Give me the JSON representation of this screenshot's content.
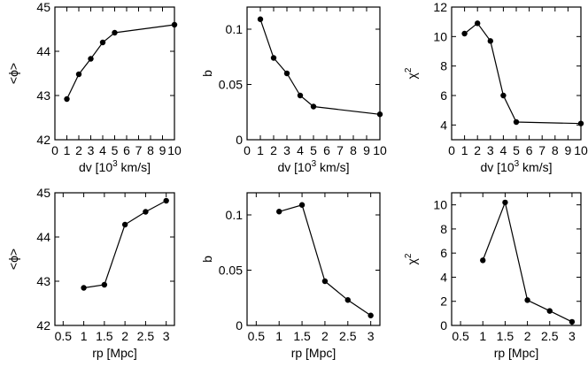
{
  "chart_data": [
    {
      "type": "line",
      "xlabel": "dv [10",
      "xlabel_sup": "3",
      "xlabel_tail": " km/s]",
      "ylabel": "<ϕ>",
      "xlim": [
        0,
        10
      ],
      "ylim": [
        42,
        45
      ],
      "xticks": [
        0,
        1,
        2,
        3,
        4,
        5,
        6,
        7,
        8,
        9,
        10
      ],
      "xtick_labels": [
        "0",
        "1",
        "2",
        "3",
        "4",
        "5",
        "6",
        "7",
        "8",
        "9",
        "10"
      ],
      "yticks": [
        42,
        43,
        44,
        45
      ],
      "ytick_labels": [
        "42",
        "43",
        "44",
        "45"
      ],
      "x": [
        1,
        2,
        3,
        4,
        5,
        10
      ],
      "y": [
        42.92,
        43.48,
        43.83,
        44.2,
        44.42,
        44.6
      ]
    },
    {
      "type": "line",
      "xlabel": "dv [10",
      "xlabel_sup": "3",
      "xlabel_tail": " km/s]",
      "ylabel": "b",
      "xlim": [
        0,
        10
      ],
      "ylim": [
        0,
        0.12
      ],
      "xticks": [
        0,
        1,
        2,
        3,
        4,
        5,
        6,
        7,
        8,
        9,
        10
      ],
      "xtick_labels": [
        "0",
        "1",
        "2",
        "3",
        "4",
        "5",
        "6",
        "7",
        "8",
        "9",
        "10"
      ],
      "yticks": [
        0,
        0.05,
        0.1
      ],
      "ytick_labels": [
        "0",
        "0.05",
        "0.1"
      ],
      "x": [
        1,
        2,
        3,
        4,
        5,
        10
      ],
      "y": [
        0.109,
        0.074,
        0.06,
        0.04,
        0.03,
        0.023
      ]
    },
    {
      "type": "line",
      "xlabel": "dv [10",
      "xlabel_sup": "3",
      "xlabel_tail": " km/s]",
      "ylabel": "χ",
      "ylabel_sup": "2",
      "xlim": [
        0,
        10
      ],
      "ylim": [
        3,
        12
      ],
      "xticks": [
        0,
        1,
        2,
        3,
        4,
        5,
        6,
        7,
        8,
        9,
        10
      ],
      "xtick_labels": [
        "0",
        "1",
        "2",
        "3",
        "4",
        "5",
        "6",
        "7",
        "8",
        "9",
        "10"
      ],
      "yticks": [
        4,
        6,
        8,
        10,
        12
      ],
      "ytick_labels": [
        "4",
        "6",
        "8",
        "10",
        "12"
      ],
      "x": [
        1,
        2,
        3,
        4,
        5,
        10
      ],
      "y": [
        10.2,
        10.9,
        9.7,
        6.0,
        4.2,
        4.1
      ]
    },
    {
      "type": "line",
      "xlabel": "rp [Mpc]",
      "ylabel": "<ϕ>",
      "xlim": [
        0.3,
        3.2
      ],
      "ylim": [
        42,
        45
      ],
      "xticks": [
        0.5,
        1,
        1.5,
        2,
        2.5,
        3
      ],
      "xtick_labels": [
        "0.5",
        "1",
        "1.5",
        "2",
        "2.5",
        "3"
      ],
      "yticks": [
        42,
        43,
        44,
        45
      ],
      "ytick_labels": [
        "42",
        "43",
        "44",
        "45"
      ],
      "x": [
        1.0,
        1.5,
        2.0,
        2.5,
        3.0
      ],
      "y": [
        42.85,
        42.92,
        44.28,
        44.57,
        44.82
      ]
    },
    {
      "type": "line",
      "xlabel": "rp [Mpc]",
      "ylabel": "b",
      "xlim": [
        0.3,
        3.2
      ],
      "ylim": [
        0,
        0.12
      ],
      "xticks": [
        0.5,
        1,
        1.5,
        2,
        2.5,
        3
      ],
      "xtick_labels": [
        "0.5",
        "1",
        "1.5",
        "2",
        "2.5",
        "3"
      ],
      "yticks": [
        0,
        0.05,
        0.1
      ],
      "ytick_labels": [
        "0",
        "0.05",
        "0.1"
      ],
      "x": [
        1.0,
        1.5,
        2.0,
        2.5,
        3.0
      ],
      "y": [
        0.103,
        0.109,
        0.04,
        0.023,
        0.009
      ]
    },
    {
      "type": "line",
      "xlabel": "rp [Mpc]",
      "ylabel": "χ",
      "ylabel_sup": "2",
      "xlim": [
        0.3,
        3.2
      ],
      "ylim": [
        0,
        11
      ],
      "xticks": [
        0.5,
        1,
        1.5,
        2,
        2.5,
        3
      ],
      "xtick_labels": [
        "0.5",
        "1",
        "1.5",
        "2",
        "2.5",
        "3"
      ],
      "yticks": [
        0,
        2,
        4,
        6,
        8,
        10
      ],
      "ytick_labels": [
        "0",
        "2",
        "4",
        "6",
        "8",
        "10"
      ],
      "x": [
        1.0,
        1.5,
        2.0,
        2.5,
        3.0
      ],
      "y": [
        5.4,
        10.2,
        2.1,
        1.2,
        0.3
      ]
    }
  ]
}
